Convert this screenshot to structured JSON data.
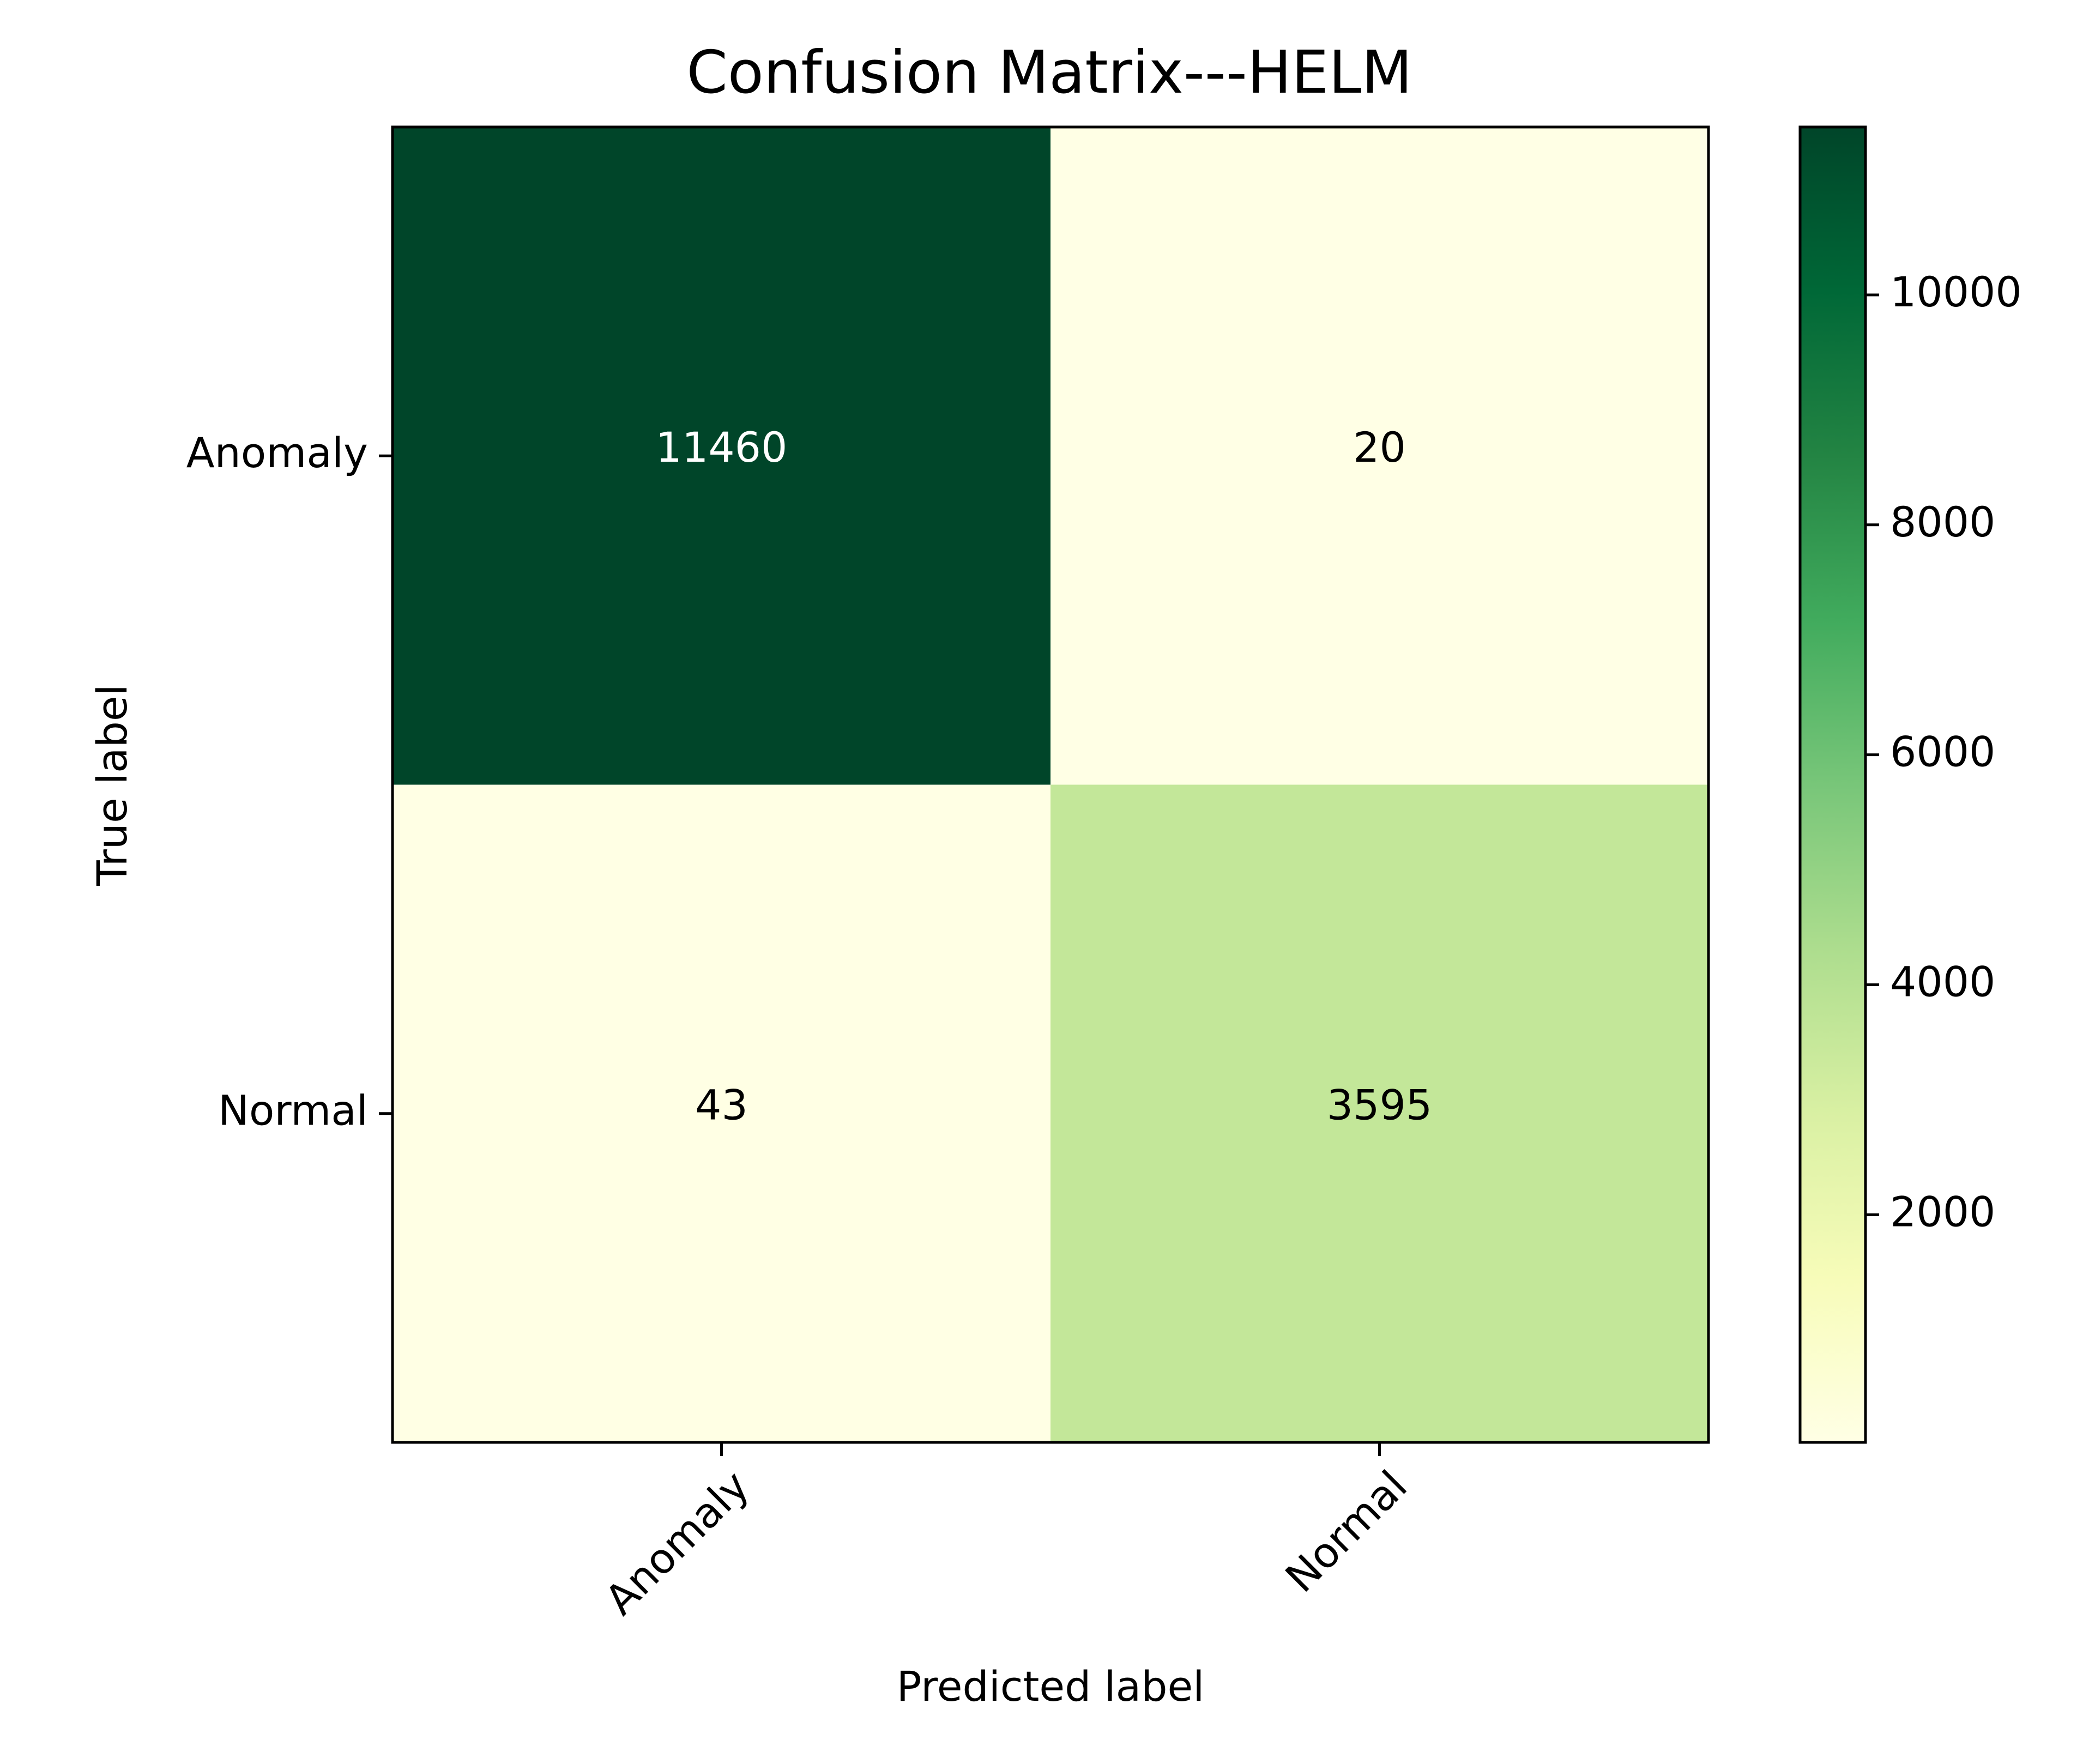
{
  "chart_data": {
    "type": "heatmap",
    "title": "Confusion Matrix---HELM",
    "xlabel": "Predicted label",
    "ylabel": "True label",
    "x_categories": [
      "Anomaly",
      "Normal"
    ],
    "y_categories": [
      "Anomaly",
      "Normal"
    ],
    "values": [
      [
        11460,
        20
      ],
      [
        43,
        3595
      ]
    ],
    "colormap": "YlGn",
    "color_range": [
      20,
      11460
    ],
    "colorbar_ticks": [
      2000,
      4000,
      6000,
      8000,
      10000
    ],
    "colorbar_tick_labels": [
      "2000",
      "4000",
      "6000",
      "8000",
      "10000"
    ],
    "grid": false,
    "legend": "colorbar-right",
    "text_colors": {
      "dark_cell": "#ffffff",
      "light_cell": "#000000"
    },
    "colormap_stops": [
      "#ffffe5",
      "#f7fcb9",
      "#d9f0a3",
      "#addd8e",
      "#78c679",
      "#41ab5d",
      "#238443",
      "#006837",
      "#004529"
    ]
  }
}
